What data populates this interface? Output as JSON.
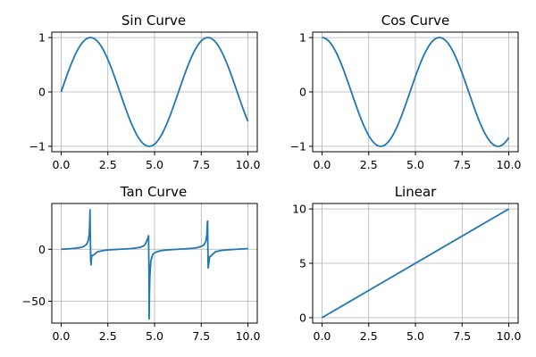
{
  "colors": {
    "line": "#1f77b4",
    "grid": "#b0b0b0",
    "axes": "#000000"
  },
  "chart_data": [
    {
      "type": "line",
      "title": "Sin Curve",
      "function": "sin",
      "x_range": [
        0,
        10
      ],
      "xlim": [
        -0.5,
        10.5
      ],
      "ylim": [
        -1.1,
        1.1
      ],
      "x_ticks": [
        0,
        2.5,
        5,
        7.5,
        10
      ],
      "x_tick_labels": [
        "0.0",
        "2.5",
        "5.0",
        "7.5",
        "10.0"
      ],
      "y_ticks": [
        -1,
        0,
        1
      ],
      "y_tick_labels": [
        "−1",
        "0",
        "1"
      ],
      "grid": true
    },
    {
      "type": "line",
      "title": "Cos Curve",
      "function": "cos",
      "x_range": [
        0,
        10
      ],
      "xlim": [
        -0.5,
        10.5
      ],
      "ylim": [
        -1.1,
        1.1
      ],
      "x_ticks": [
        0,
        2.5,
        5,
        7.5,
        10
      ],
      "x_tick_labels": [
        "0.0",
        "2.5",
        "5.0",
        "7.5",
        "10.0"
      ],
      "y_ticks": [
        -1,
        0,
        1
      ],
      "y_tick_labels": [
        "−1",
        "0",
        "1"
      ],
      "grid": true
    },
    {
      "type": "line",
      "title": "Tan Curve",
      "function": "tan",
      "x_range": [
        0,
        10
      ],
      "xlim": [
        -0.5,
        10.5
      ],
      "ylim": [
        -71,
        44
      ],
      "x_ticks": [
        0,
        2.5,
        5,
        7.5,
        10
      ],
      "x_tick_labels": [
        "0.0",
        "2.5",
        "5.0",
        "7.5",
        "10.0"
      ],
      "y_ticks": [
        -50,
        0
      ],
      "y_tick_labels": [
        "−50",
        "0"
      ],
      "grid": true,
      "samples": [
        [
          0,
          0
        ],
        [
          0.25,
          0.26
        ],
        [
          0.5,
          0.55
        ],
        [
          0.75,
          0.93
        ],
        [
          1.0,
          1.56
        ],
        [
          1.2,
          2.57
        ],
        [
          1.35,
          4.46
        ],
        [
          1.45,
          8.24
        ],
        [
          1.5,
          14.1
        ],
        [
          1.53,
          24.5
        ],
        [
          1.545,
          38.0
        ],
        [
          1.555,
          20.0
        ],
        [
          1.57,
          5.0
        ],
        [
          1.58,
          -10.0
        ],
        [
          1.6,
          -15.0
        ],
        [
          1.62,
          -9.0
        ],
        [
          1.65,
          -6.0
        ],
        [
          1.75,
          -5.5
        ],
        [
          1.9,
          -2.92
        ],
        [
          2.0,
          -2.19
        ],
        [
          2.25,
          -1.24
        ],
        [
          2.5,
          -0.75
        ],
        [
          2.75,
          -0.42
        ],
        [
          3.0,
          -0.14
        ],
        [
          3.14,
          0
        ],
        [
          3.5,
          0.37
        ],
        [
          3.75,
          0.67
        ],
        [
          4.0,
          1.16
        ],
        [
          4.25,
          1.97
        ],
        [
          4.4,
          3.1
        ],
        [
          4.5,
          4.64
        ],
        [
          4.6,
          8.86
        ],
        [
          4.65,
          11.0
        ],
        [
          4.68,
          13.0
        ],
        [
          4.7,
          -20.0
        ],
        [
          4.71,
          -67.0
        ],
        [
          4.73,
          -40.0
        ],
        [
          4.75,
          -26.0
        ],
        [
          4.8,
          -11.4
        ],
        [
          4.9,
          -5.27
        ],
        [
          5.0,
          -3.38
        ],
        [
          5.25,
          -1.72
        ],
        [
          5.5,
          -0.99
        ],
        [
          5.75,
          -0.56
        ],
        [
          6.0,
          -0.29
        ],
        [
          6.28,
          0
        ],
        [
          6.5,
          0.22
        ],
        [
          6.75,
          0.51
        ],
        [
          7.0,
          0.87
        ],
        [
          7.25,
          1.42
        ],
        [
          7.5,
          2.71
        ],
        [
          7.65,
          4.27
        ],
        [
          7.75,
          8.0
        ],
        [
          7.8,
          14.0
        ],
        [
          7.83,
          26.0
        ],
        [
          7.84,
          27.0
        ],
        [
          7.86,
          -5.0
        ],
        [
          7.87,
          -18.0
        ],
        [
          7.9,
          -14.0
        ],
        [
          7.95,
          -7.2
        ],
        [
          8.0,
          -6.8
        ],
        [
          8.25,
          -2.5
        ],
        [
          8.5,
          -1.37
        ],
        [
          8.75,
          -0.83
        ],
        [
          9.0,
          -0.45
        ],
        [
          9.42,
          0
        ],
        [
          9.75,
          0.35
        ],
        [
          10.0,
          0.65
        ]
      ]
    },
    {
      "type": "line",
      "title": "Linear",
      "function": "linear",
      "x_range": [
        0,
        10
      ],
      "xlim": [
        -0.5,
        10.5
      ],
      "ylim": [
        -0.5,
        10.5
      ],
      "x_ticks": [
        0,
        2.5,
        5,
        7.5,
        10
      ],
      "x_tick_labels": [
        "0.0",
        "2.5",
        "5.0",
        "7.5",
        "10.0"
      ],
      "y_ticks": [
        0,
        5,
        10
      ],
      "y_tick_labels": [
        "0",
        "5",
        "10"
      ],
      "grid": true
    }
  ]
}
